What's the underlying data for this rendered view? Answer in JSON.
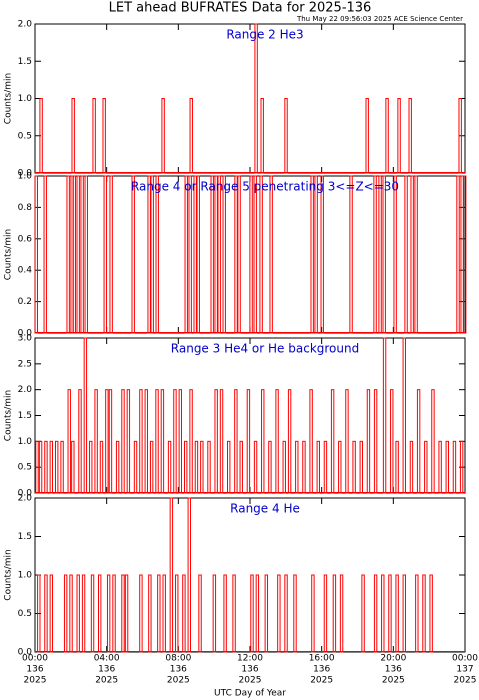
{
  "title": "LET ahead BUFRATES Data for 2025-136",
  "subtitle": "Thu May 22 09:56:03 2025 ACE Science Center",
  "chart_data": [
    {
      "type": "line",
      "title": "Range 2 He3",
      "ylabel": "Counts/min",
      "color": "#ff0000",
      "title_color": "#0000cc",
      "xlim": [
        0,
        24
      ],
      "xticks": [
        0,
        4,
        8,
        12,
        16,
        20,
        24
      ],
      "ylim": [
        0,
        2
      ],
      "yticks": [
        {
          "value": 0,
          "label": "0.0"
        },
        {
          "value": 0.5,
          "label": "0.5"
        },
        {
          "value": 1,
          "label": "1.0"
        },
        {
          "value": 1.5,
          "label": "1.5"
        },
        {
          "value": 2,
          "label": "2.0"
        }
      ],
      "x": [
        0.33,
        2.12,
        3.29,
        3.85,
        7.14,
        8.71,
        12.33,
        12.67,
        14.0,
        18.53,
        19.64,
        20.31,
        20.93,
        23.72
      ],
      "values": [
        1,
        1,
        1,
        1,
        1,
        1,
        2,
        1,
        1,
        1,
        1,
        1,
        1,
        1
      ]
    },
    {
      "type": "line",
      "title": "Range 4 or Range 5 penetrating 3<=Z<=30",
      "ylabel": "Counts/min",
      "color": "#ff0000",
      "title_color": "#0000cc",
      "xlim": [
        0,
        24
      ],
      "xticks": [
        0,
        4,
        8,
        12,
        16,
        20,
        24
      ],
      "ylim": [
        0,
        1
      ],
      "yticks": [
        {
          "value": 0,
          "label": "0.0"
        },
        {
          "value": 0.2,
          "label": "0.2"
        },
        {
          "value": 0.4,
          "label": "0.4"
        },
        {
          "value": 0.6,
          "label": "0.6"
        },
        {
          "value": 0.8,
          "label": "0.8"
        },
        {
          "value": 1,
          "label": "1.0"
        }
      ],
      "x": [
        0.06,
        0.56,
        1.84,
        2.06,
        2.18,
        2.4,
        2.62,
        2.85,
        3.91,
        4.24,
        5.47,
        6.36,
        6.53,
        6.81,
        8.43,
        8.65,
        8.93,
        9.1,
        9.88,
        10.1,
        10.27,
        10.55,
        11.21,
        11.38,
        12.05,
        12.28,
        12.61,
        13.17,
        15.46,
        15.68,
        16.02,
        17.63,
        18.97,
        19.25,
        19.48,
        20.09,
        20.7,
        21.04,
        21.26,
        23.6,
        23.83,
        23.97
      ],
      "values": [
        1,
        1,
        1,
        1,
        1,
        1,
        1,
        1,
        1,
        1,
        1,
        1,
        1,
        1,
        1,
        1,
        1,
        1,
        1,
        1,
        1,
        1,
        1,
        1,
        1,
        1,
        1,
        1,
        1,
        1,
        1,
        1,
        1,
        1,
        1,
        1,
        1,
        1,
        1,
        1,
        1,
        1
      ]
    },
    {
      "type": "line",
      "title": "Range 3 He4 or He background",
      "ylabel": "Counts/min",
      "color": "#ff0000",
      "title_color": "#0000cc",
      "xlim": [
        0,
        24
      ],
      "xticks": [
        0,
        4,
        8,
        12,
        16,
        20,
        24
      ],
      "ylim": [
        0,
        3
      ],
      "yticks": [
        {
          "value": 0,
          "label": "0.0"
        },
        {
          "value": 0.5,
          "label": "0.5"
        },
        {
          "value": 1,
          "label": "1.0"
        },
        {
          "value": 1.5,
          "label": "1.5"
        },
        {
          "value": 2,
          "label": "2.0"
        },
        {
          "value": 2.5,
          "label": "2.5"
        },
        {
          "value": 3,
          "label": "3.0"
        }
      ],
      "x": [
        0.1,
        0.3,
        0.6,
        0.9,
        1.2,
        1.5,
        1.9,
        2.1,
        2.5,
        2.8,
        3.1,
        3.4,
        3.7,
        4.0,
        4.2,
        4.6,
        4.9,
        5.2,
        5.6,
        5.9,
        6.2,
        6.5,
        6.8,
        7.1,
        7.5,
        7.8,
        8.1,
        8.4,
        8.7,
        9.0,
        9.3,
        9.7,
        10.1,
        10.4,
        10.8,
        11.2,
        11.5,
        11.9,
        12.3,
        12.7,
        13.1,
        13.5,
        13.9,
        14.2,
        14.6,
        15.0,
        15.4,
        15.8,
        16.2,
        16.6,
        17.0,
        17.4,
        17.8,
        18.2,
        18.6,
        19.0,
        19.5,
        19.9,
        20.2,
        20.6,
        21.0,
        21.4,
        21.8,
        22.2,
        22.6,
        23.0,
        23.4,
        23.8
      ],
      "values": [
        1,
        1,
        1,
        1,
        1,
        1,
        2,
        1,
        2,
        3,
        1,
        2,
        1,
        2,
        2,
        1,
        2,
        2,
        1,
        2,
        2,
        1,
        2,
        2,
        1,
        2,
        2,
        1,
        2,
        1,
        1,
        1,
        2,
        2,
        1,
        2,
        1,
        2,
        1,
        2,
        1,
        2,
        1,
        2,
        1,
        1,
        2,
        1,
        1,
        2,
        1,
        2,
        1,
        1,
        2,
        2,
        3,
        2,
        1,
        3,
        1,
        2,
        1,
        2,
        1,
        1,
        1,
        1
      ]
    },
    {
      "type": "line",
      "title": "Range 4 He",
      "ylabel": "Counts/min",
      "xlabel": "UTC Day of Year",
      "color": "#ff0000",
      "title_color": "#0000cc",
      "xlim": [
        0,
        24
      ],
      "xticks": [
        {
          "value": 0,
          "label": "00:00",
          "day": "136",
          "year": "2025"
        },
        {
          "value": 4,
          "label": "04:00",
          "day": "136",
          "year": "2025"
        },
        {
          "value": 8,
          "label": "08:00",
          "day": "136",
          "year": "2025"
        },
        {
          "value": 12,
          "label": "12:00",
          "day": "136",
          "year": "2025"
        },
        {
          "value": 16,
          "label": "16:00",
          "day": "136",
          "year": "2025"
        },
        {
          "value": 20,
          "label": "20:00",
          "day": "136",
          "year": "2025"
        },
        {
          "value": 24,
          "label": "00:00",
          "day": "137",
          "year": "2025"
        }
      ],
      "ylim": [
        0,
        2
      ],
      "yticks": [
        {
          "value": 0,
          "label": "0.0"
        },
        {
          "value": 0.5,
          "label": "0.5"
        },
        {
          "value": 1,
          "label": "1.0"
        },
        {
          "value": 1.5,
          "label": "1.5"
        },
        {
          "value": 2,
          "label": "2.0"
        }
      ],
      "x": [
        0.2,
        0.6,
        0.9,
        1.7,
        2.0,
        2.4,
        2.7,
        3.2,
        3.6,
        4.1,
        4.4,
        4.9,
        5.1,
        5.9,
        6.4,
        6.9,
        7.2,
        7.6,
        7.9,
        8.3,
        8.6,
        9.2,
        10.0,
        10.6,
        11.1,
        12.1,
        12.4,
        12.9,
        13.6,
        14.0,
        14.5,
        15.5,
        16.2,
        16.7,
        17.1,
        18.3,
        19.0,
        19.4,
        19.8,
        20.2,
        20.6,
        21.3,
        21.7,
        22.1
      ],
      "values": [
        1,
        1,
        1,
        1,
        1,
        1,
        1,
        1,
        1,
        1,
        1,
        1,
        1,
        1,
        1,
        1,
        1,
        2,
        1,
        1,
        2,
        1,
        1,
        1,
        1,
        1,
        1,
        1,
        1,
        1,
        1,
        1,
        1,
        1,
        1,
        1,
        1,
        1,
        1,
        1,
        1,
        1,
        1,
        1
      ]
    }
  ]
}
